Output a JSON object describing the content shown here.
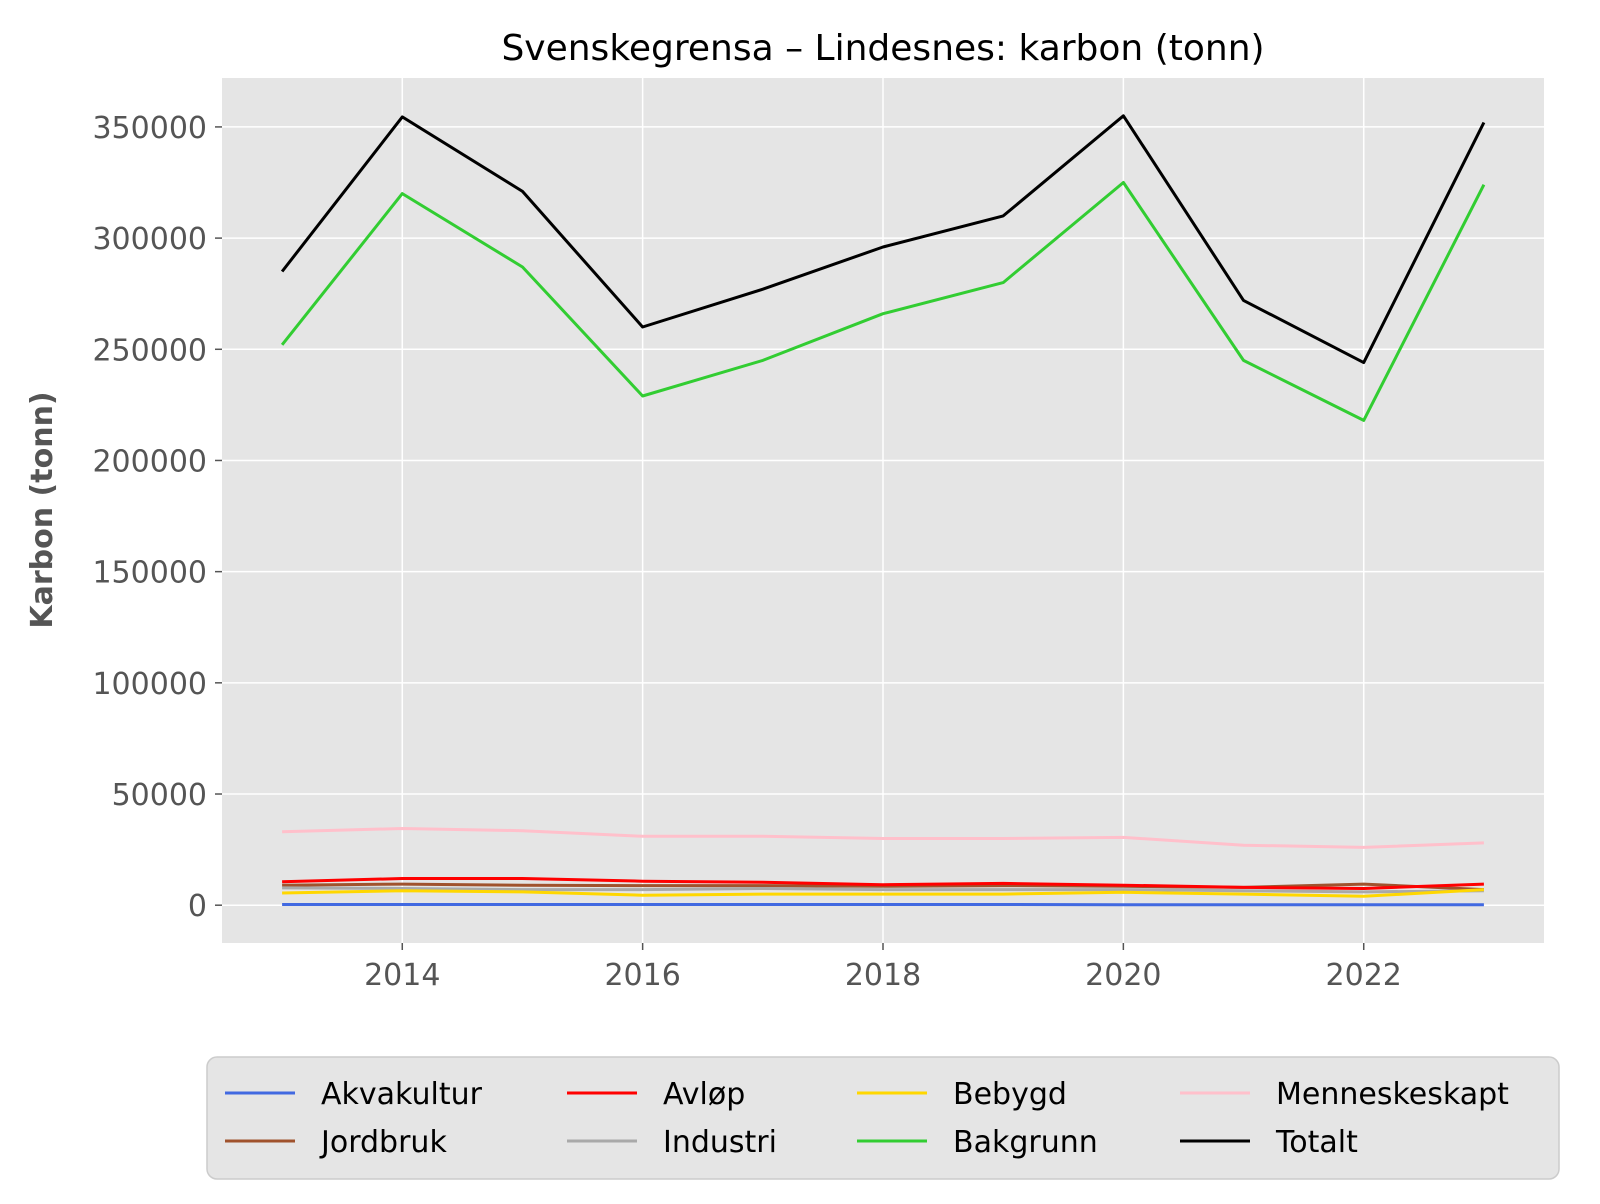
{
  "chart_data": {
    "type": "line",
    "title": "Svenskegrensa – Lindesnes: karbon (tonn)",
    "xlabel": "",
    "ylabel": "Karbon (tonn)",
    "x": [
      2013,
      2014,
      2015,
      2016,
      2017,
      2018,
      2019,
      2020,
      2021,
      2022,
      2023
    ],
    "xlim": [
      2012.5,
      2023.5
    ],
    "ylim": [
      -17000,
      372000
    ],
    "xticks": [
      2014,
      2016,
      2018,
      2020,
      2022
    ],
    "xtick_labels": [
      "2014",
      "2016",
      "2018",
      "2020",
      "2022"
    ],
    "yticks": [
      0,
      50000,
      100000,
      150000,
      200000,
      250000,
      300000,
      350000
    ],
    "ytick_labels": [
      "0",
      "50000",
      "100000",
      "150000",
      "200000",
      "250000",
      "300000",
      "350000"
    ],
    "grid": true,
    "legend_position": "bottom-center",
    "legend_columns": 4,
    "series": [
      {
        "name": "Akvakultur",
        "color": "#4169E1",
        "values": [
          300,
          300,
          300,
          300,
          300,
          300,
          300,
          200,
          200,
          200,
          200
        ]
      },
      {
        "name": "Jordbruk",
        "color": "#A0522D",
        "values": [
          9000,
          9500,
          9000,
          8800,
          8800,
          8500,
          8800,
          8500,
          8000,
          9500,
          7000
        ]
      },
      {
        "name": "Avløp",
        "color": "#FF0000",
        "values": [
          10500,
          12000,
          12000,
          10800,
          10300,
          9200,
          9800,
          9000,
          8000,
          7500,
          9500
        ]
      },
      {
        "name": "Industri",
        "color": "#A9A9A9",
        "values": [
          7800,
          7500,
          7000,
          7000,
          7500,
          7000,
          7000,
          7000,
          6500,
          6000,
          6500
        ]
      },
      {
        "name": "Bebygd",
        "color": "#FFD700",
        "values": [
          5500,
          6500,
          6000,
          4500,
          5000,
          5000,
          5000,
          5800,
          5000,
          4000,
          7000
        ]
      },
      {
        "name": "Bakgrunn",
        "color": "#32CD32",
        "values": [
          252000,
          320000,
          287000,
          229000,
          245000,
          266000,
          280000,
          325000,
          245000,
          218000,
          324000
        ]
      },
      {
        "name": "Menneskeskapt",
        "color": "#FFC0CB",
        "values": [
          33000,
          34500,
          33500,
          31000,
          31000,
          30000,
          30000,
          30500,
          27000,
          26000,
          28000
        ]
      },
      {
        "name": "Totalt",
        "color": "#000000",
        "values": [
          285000,
          354500,
          321000,
          260000,
          277000,
          296000,
          310000,
          355000,
          272000,
          244000,
          352000
        ]
      }
    ]
  }
}
